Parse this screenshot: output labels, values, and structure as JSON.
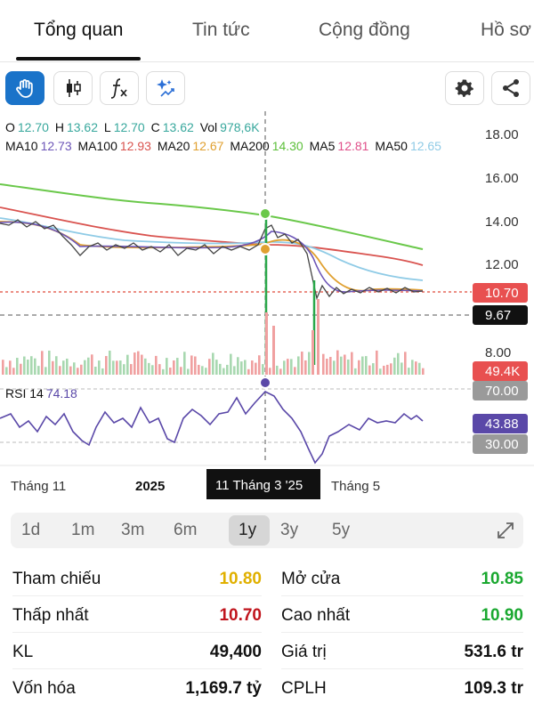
{
  "tabs": [
    {
      "label": "Tổng quan",
      "active": true
    },
    {
      "label": "Tin tức",
      "active": false
    },
    {
      "label": "Cộng đồng",
      "active": false
    },
    {
      "label": "Hồ sơ",
      "active": false
    }
  ],
  "toolbar": {
    "tools": [
      "hand-icon",
      "candlestick-icon",
      "function-icon",
      "sparkle-icon"
    ],
    "right_tools": [
      "settings-icon",
      "share-icon"
    ]
  },
  "ohlc": {
    "o_label": "O",
    "o": "12.70",
    "h_label": "H",
    "h": "13.62",
    "l_label": "L",
    "l": "12.70",
    "c_label": "C",
    "c": "13.62",
    "vol_label": "Vol",
    "vol": "978,6K"
  },
  "ma_legend": [
    {
      "label": "MA10",
      "value": "12.73",
      "color": "#6d56b8"
    },
    {
      "label": "MA100",
      "value": "12.93",
      "color": "#d9534f"
    },
    {
      "label": "MA20",
      "value": "12.67",
      "color": "#e0a030"
    },
    {
      "label": "MA200",
      "value": "14.30",
      "color": "#5cbf3a"
    },
    {
      "label": "MA5",
      "value": "12.81",
      "color": "#e0508a"
    },
    {
      "label": "MA50",
      "value": "12.65",
      "color": "#8fcbe6"
    }
  ],
  "price_axis": [
    "18.00",
    "16.00",
    "14.00",
    "12.00",
    "8.00"
  ],
  "price_badges": {
    "last": "10.70",
    "crosshair": "9.67",
    "volume": "49.4K"
  },
  "rsi": {
    "label": "RSI 14",
    "value": "74.18",
    "current": "43.88",
    "upper": "70.00",
    "lower": "30.00"
  },
  "time_axis": {
    "left": "Tháng 11",
    "year": "2025",
    "crosshair": "11 Tháng 3 '25",
    "right": "Tháng 5"
  },
  "ranges": [
    "1d",
    "1m",
    "3m",
    "6m",
    "1y",
    "3y",
    "5y"
  ],
  "active_range": "1y",
  "stats_left": [
    {
      "label": "Tham chiếu",
      "value": "10.80",
      "color": "#e0b000"
    },
    {
      "label": "Thấp nhất",
      "value": "10.70",
      "color": "#c0141c"
    },
    {
      "label": "KL",
      "value": "49,400",
      "color": "#111111"
    },
    {
      "label": "Vốn hóa",
      "value": "1,169.7 tỷ",
      "color": "#111111"
    }
  ],
  "stats_right": [
    {
      "label": "Mở cửa",
      "value": "10.85",
      "color": "#1aa830"
    },
    {
      "label": "Cao nhất",
      "value": "10.90",
      "color": "#1aa830"
    },
    {
      "label": "Giá trị",
      "value": "531.6 tr",
      "color": "#111111"
    },
    {
      "label": "CPLH",
      "value": "109.3 tr",
      "color": "#111111"
    }
  ],
  "chart_data": {
    "type": "line",
    "series": [
      {
        "name": "MA200",
        "x": [
          0,
          10,
          20,
          30,
          40,
          50,
          60,
          70,
          80,
          90,
          100
        ],
        "values": [
          16.0,
          15.7,
          15.4,
          15.1,
          14.8,
          14.6,
          14.3,
          14.0,
          13.6,
          13.1,
          12.7
        ]
      },
      {
        "name": "MA100",
        "x": [
          0,
          10,
          20,
          30,
          40,
          50,
          60,
          70,
          80,
          90,
          100
        ],
        "values": [
          14.9,
          14.5,
          14.1,
          13.7,
          13.4,
          13.1,
          12.9,
          12.7,
          12.4,
          12.1,
          11.9
        ]
      },
      {
        "name": "Price",
        "x": [
          0,
          10,
          20,
          30,
          40,
          50,
          60,
          70,
          80,
          90,
          100
        ],
        "values": [
          14.0,
          13.8,
          12.8,
          12.9,
          12.8,
          12.7,
          13.6,
          13.0,
          10.8,
          10.8,
          10.7
        ]
      }
    ],
    "ylim": [
      7.5,
      18.5
    ],
    "rsi": [
      55,
      50,
      40,
      60,
      48,
      62,
      74,
      58,
      28,
      47,
      52,
      44
    ],
    "rsi_ylim": [
      20,
      80
    ]
  }
}
